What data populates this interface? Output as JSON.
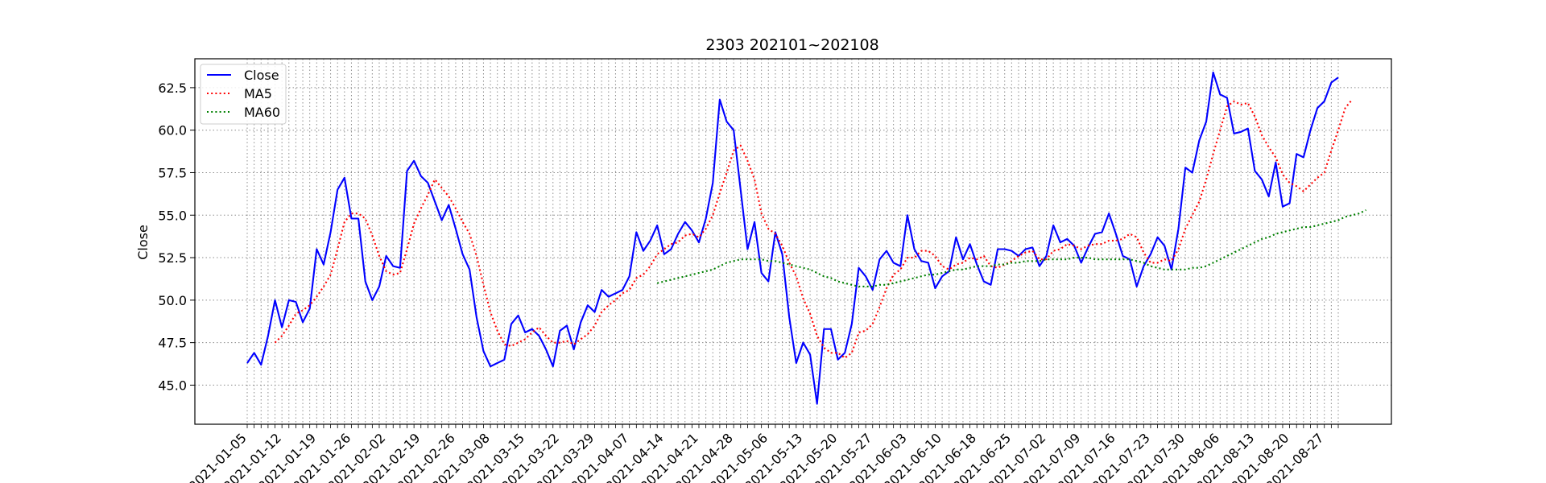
{
  "chart_data": {
    "type": "line",
    "title": "2303 202101~202108",
    "xlabel": "",
    "ylabel": "Close",
    "ylim": [
      42.7,
      64.2
    ],
    "grid": true,
    "legend_placement": "top-left",
    "yticks": [
      45.0,
      47.5,
      50.0,
      52.5,
      55.0,
      57.5,
      60.0,
      62.5
    ],
    "xtick_labels": [
      "2021-01-05",
      "2021-01-12",
      "2021-01-19",
      "2021-01-26",
      "2021-02-02",
      "2021-02-19",
      "2021-02-26",
      "2021-03-08",
      "2021-03-15",
      "2021-03-22",
      "2021-03-29",
      "2021-04-07",
      "2021-04-14",
      "2021-04-21",
      "2021-04-28",
      "2021-05-06",
      "2021-05-13",
      "2021-05-20",
      "2021-05-27",
      "2021-06-03",
      "2021-06-10",
      "2021-06-18",
      "2021-06-25",
      "2021-07-02",
      "2021-07-09",
      "2021-07-16",
      "2021-07-23",
      "2021-07-30",
      "2021-08-06",
      "2021-08-13",
      "2021-08-20",
      "2021-08-27"
    ],
    "series": [
      {
        "name": "Close",
        "color": "#0000ff",
        "style": "solid",
        "values": [
          46.3,
          46.9,
          46.2,
          47.9,
          50.0,
          48.4,
          50.0,
          49.9,
          48.7,
          49.5,
          53.0,
          52.1,
          54.0,
          56.5,
          57.2,
          54.8,
          54.8,
          51.1,
          50.0,
          50.8,
          52.6,
          52.0,
          51.9,
          57.6,
          58.2,
          57.3,
          56.9,
          55.8,
          54.7,
          55.6,
          54.2,
          52.7,
          51.8,
          49.0,
          47.0,
          46.1,
          46.3,
          46.5,
          48.6,
          49.1,
          48.1,
          48.3,
          47.9,
          47.1,
          46.1,
          48.2,
          48.5,
          47.1,
          48.7,
          49.7,
          49.3,
          50.6,
          50.2,
          50.4,
          50.6,
          51.4,
          54.0,
          52.9,
          53.5,
          54.4,
          52.7,
          53.0,
          53.9,
          54.6,
          54.1,
          53.4,
          54.8,
          56.9,
          61.8,
          60.5,
          60.0,
          56.5,
          53.0,
          54.6,
          51.6,
          51.1,
          54.0,
          52.7,
          49.0,
          46.3,
          47.5,
          46.8,
          43.9,
          48.3,
          48.3,
          46.5,
          46.9,
          48.6,
          51.9,
          51.4,
          50.6,
          52.4,
          52.9,
          52.2,
          52.0,
          55.0,
          53.0,
          52.3,
          52.2,
          50.7,
          51.4,
          51.7,
          53.7,
          52.4,
          53.3,
          52.1,
          51.1,
          50.9,
          53.0,
          53.0,
          52.9,
          52.6,
          53.0,
          53.1,
          52.0,
          52.6,
          54.4,
          53.4,
          53.6,
          53.2,
          52.2,
          53.1,
          53.9,
          54.0,
          55.1,
          53.9,
          52.6,
          52.4,
          50.8,
          52.0,
          52.7,
          53.7,
          53.2,
          51.8,
          54.2,
          57.8,
          57.5,
          59.4,
          60.5,
          63.4,
          62.1,
          61.9,
          59.8,
          59.9,
          60.1,
          57.6,
          57.1,
          56.1,
          58.1,
          55.5,
          55.7,
          58.6,
          58.4,
          60.0,
          61.3,
          61.7,
          62.8,
          63.1
        ]
      },
      {
        "name": "MA5",
        "color": "#ff0000",
        "style": "dotted",
        "values": [
          null,
          null,
          null,
          null,
          47.5,
          47.9,
          48.5,
          49.2,
          49.4,
          49.7,
          50.2,
          50.8,
          51.5,
          53.0,
          54.6,
          55.1,
          55.1,
          54.8,
          53.8,
          52.6,
          51.7,
          51.5,
          51.6,
          53.0,
          54.5,
          55.4,
          56.2,
          57.1,
          56.6,
          56.1,
          55.4,
          54.6,
          53.9,
          52.6,
          50.9,
          49.3,
          48.2,
          47.4,
          47.3,
          47.5,
          47.7,
          48.1,
          48.4,
          47.9,
          47.5,
          47.5,
          47.6,
          47.4,
          47.7,
          48.0,
          48.5,
          49.3,
          49.7,
          50.0,
          50.4,
          50.6,
          51.3,
          51.5,
          52.0,
          52.7,
          53.0,
          53.3,
          53.4,
          53.8,
          53.9,
          53.7,
          54.2,
          55.0,
          56.3,
          57.5,
          58.8,
          59.1,
          58.2,
          57.1,
          55.1,
          54.2,
          53.9,
          53.2,
          52.2,
          51.4,
          50.1,
          49.2,
          47.9,
          47.2,
          46.9,
          46.9,
          46.6,
          46.9,
          48.1,
          48.2,
          48.6,
          49.6,
          50.7,
          51.5,
          51.8,
          52.5,
          52.5,
          52.9,
          52.9,
          52.6,
          52.0,
          51.8,
          52.1,
          52.2,
          52.5,
          52.4,
          52.6,
          52.0,
          51.9,
          52.1,
          52.3,
          52.6,
          52.8,
          52.9,
          52.4,
          52.4,
          52.9,
          53.0,
          53.3,
          53.2,
          53.0,
          53.2,
          53.3,
          53.3,
          53.5,
          53.5,
          53.6,
          53.9,
          53.7,
          52.8,
          52.2,
          52.2,
          52.4,
          52.3,
          53.0,
          54.2,
          55.0,
          55.8,
          57.1,
          58.6,
          60.0,
          61.4,
          61.7,
          61.5,
          61.6,
          60.8,
          59.7,
          59.0,
          58.4,
          57.4,
          56.9,
          56.7,
          56.4,
          56.8,
          57.2,
          57.5,
          58.8,
          60.0,
          61.3,
          61.8
        ]
      },
      {
        "name": "MA60",
        "color": "#008000",
        "style": "dotted",
        "values": [
          null,
          null,
          null,
          null,
          null,
          null,
          null,
          null,
          null,
          null,
          null,
          null,
          null,
          null,
          null,
          null,
          null,
          null,
          null,
          null,
          null,
          null,
          null,
          null,
          null,
          null,
          null,
          null,
          null,
          null,
          null,
          null,
          null,
          null,
          null,
          null,
          null,
          null,
          null,
          null,
          null,
          null,
          null,
          null,
          null,
          null,
          null,
          null,
          null,
          null,
          null,
          null,
          null,
          null,
          null,
          null,
          null,
          null,
          null,
          51.0,
          51.1,
          51.2,
          51.3,
          51.4,
          51.5,
          51.6,
          51.7,
          51.8,
          52.0,
          52.2,
          52.3,
          52.4,
          52.4,
          52.4,
          52.4,
          52.3,
          52.3,
          52.2,
          52.1,
          52.0,
          51.9,
          51.8,
          51.6,
          51.4,
          51.3,
          51.1,
          51.0,
          50.9,
          50.8,
          50.8,
          50.8,
          50.9,
          50.9,
          51.0,
          51.1,
          51.2,
          51.3,
          51.4,
          51.5,
          51.5,
          51.6,
          51.7,
          51.8,
          51.8,
          51.9,
          52.0,
          52.0,
          52.0,
          52.1,
          52.1,
          52.2,
          52.2,
          52.3,
          52.3,
          52.3,
          52.4,
          52.4,
          52.4,
          52.4,
          52.5,
          52.5,
          52.5,
          52.4,
          52.4,
          52.4,
          52.4,
          52.4,
          52.4,
          52.3,
          52.2,
          52.0,
          51.9,
          51.8,
          51.8,
          51.8,
          51.8,
          51.9,
          51.9,
          52.0,
          52.2,
          52.4,
          52.6,
          52.8,
          53.0,
          53.2,
          53.4,
          53.6,
          53.7,
          53.9,
          54.0,
          54.1,
          54.2,
          54.3,
          54.3,
          54.4,
          54.5,
          54.6,
          54.7,
          54.9,
          55.0,
          55.1,
          55.3
        ]
      }
    ]
  }
}
